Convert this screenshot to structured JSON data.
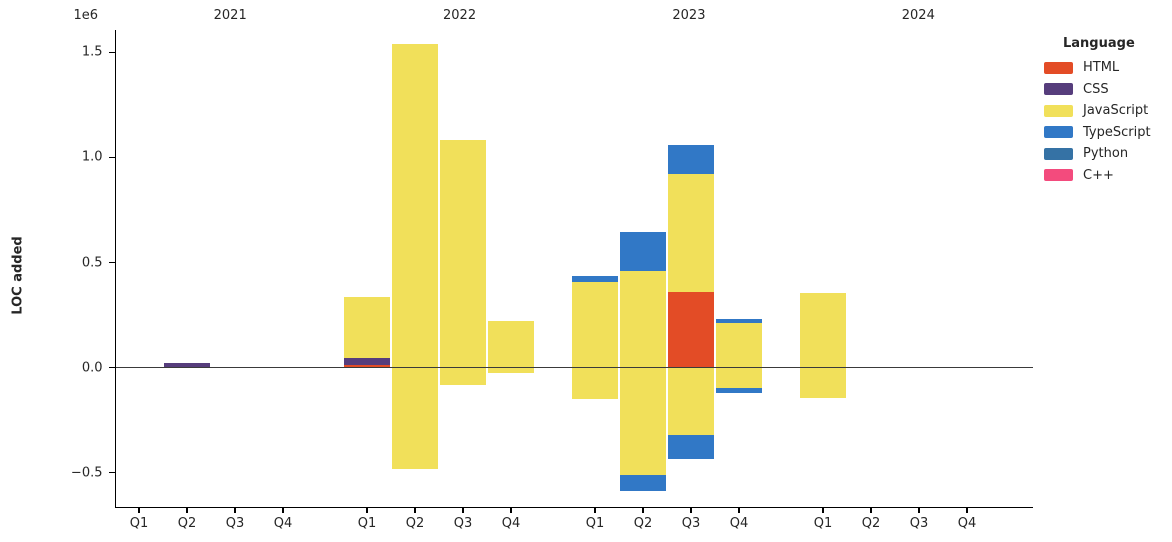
{
  "chart_data": {
    "type": "bar",
    "stacked": true,
    "ylabel": "LOC added",
    "y_offset_label": "1e6",
    "grid": false,
    "ylim": [
      -664000,
      1607000
    ],
    "y_ticks": [
      {
        "label": "1.5",
        "value": 1500000
      },
      {
        "label": "1.0",
        "value": 1000000
      },
      {
        "label": "0.5",
        "value": 500000
      },
      {
        "label": "0.0",
        "value": 0
      },
      {
        "label": "−0.5",
        "value": -500000
      }
    ],
    "years": [
      "2021",
      "2022",
      "2023",
      "2024"
    ],
    "quarters": [
      "Q1",
      "Q2",
      "Q3",
      "Q4"
    ],
    "legend": {
      "title": "Language",
      "position": "upper-right-outside",
      "entries": [
        {
          "name": "HTML",
          "color": "#e34c26"
        },
        {
          "name": "CSS",
          "color": "#563d7c"
        },
        {
          "name": "JavaScript",
          "color": "#f1e05a"
        },
        {
          "name": "TypeScript",
          "color": "#3178c6"
        },
        {
          "name": "Python",
          "color": "#3572a5"
        },
        {
          "name": "C++",
          "color": "#f34b7d"
        }
      ]
    },
    "bars": [
      {
        "year": "2021",
        "quarter": "Q1",
        "segments": []
      },
      {
        "year": "2021",
        "quarter": "Q2",
        "segments": [
          {
            "language": "CSS",
            "value": 20000
          }
        ]
      },
      {
        "year": "2021",
        "quarter": "Q3",
        "segments": []
      },
      {
        "year": "2021",
        "quarter": "Q4",
        "segments": []
      },
      {
        "year": "2022",
        "quarter": "Q1",
        "segments": [
          {
            "language": "HTML",
            "value": 10000
          },
          {
            "language": "CSS",
            "value": 36000
          },
          {
            "language": "JavaScript",
            "value": 291000
          }
        ]
      },
      {
        "year": "2022",
        "quarter": "Q2",
        "segments": [
          {
            "language": "JavaScript",
            "value": 1540000
          },
          {
            "language": "JavaScript",
            "value": -485000
          }
        ]
      },
      {
        "year": "2022",
        "quarter": "Q3",
        "segments": [
          {
            "language": "JavaScript",
            "value": 1085000
          },
          {
            "language": "JavaScript",
            "value": -85000
          }
        ]
      },
      {
        "year": "2022",
        "quarter": "Q4",
        "segments": [
          {
            "language": "JavaScript",
            "value": 223000
          },
          {
            "language": "JavaScript",
            "value": -28000
          }
        ]
      },
      {
        "year": "2023",
        "quarter": "Q1",
        "segments": [
          {
            "language": "JavaScript",
            "value": 407000
          },
          {
            "language": "TypeScript",
            "value": 30000
          },
          {
            "language": "JavaScript",
            "value": -151000
          }
        ]
      },
      {
        "year": "2023",
        "quarter": "Q2",
        "segments": [
          {
            "language": "JavaScript",
            "value": 459000
          },
          {
            "language": "TypeScript",
            "value": 186000
          },
          {
            "language": "JavaScript",
            "value": -512000
          },
          {
            "language": "TypeScript",
            "value": -74000
          }
        ]
      },
      {
        "year": "2023",
        "quarter": "Q3",
        "segments": [
          {
            "language": "HTML",
            "value": 358000
          },
          {
            "language": "JavaScript",
            "value": 563000
          },
          {
            "language": "TypeScript",
            "value": 140000
          },
          {
            "language": "JavaScript",
            "value": -321000
          },
          {
            "language": "TypeScript",
            "value": -113000
          }
        ]
      },
      {
        "year": "2023",
        "quarter": "Q4",
        "segments": [
          {
            "language": "JavaScript",
            "value": 210000
          },
          {
            "language": "TypeScript",
            "value": 22000
          },
          {
            "language": "JavaScript",
            "value": -99000
          },
          {
            "language": "TypeScript",
            "value": -24000
          }
        ]
      },
      {
        "year": "2024",
        "quarter": "Q1",
        "segments": [
          {
            "language": "JavaScript",
            "value": 353000
          },
          {
            "language": "JavaScript",
            "value": -147000
          }
        ]
      },
      {
        "year": "2024",
        "quarter": "Q2",
        "segments": []
      },
      {
        "year": "2024",
        "quarter": "Q3",
        "segments": []
      },
      {
        "year": "2024",
        "quarter": "Q4",
        "segments": []
      }
    ]
  }
}
